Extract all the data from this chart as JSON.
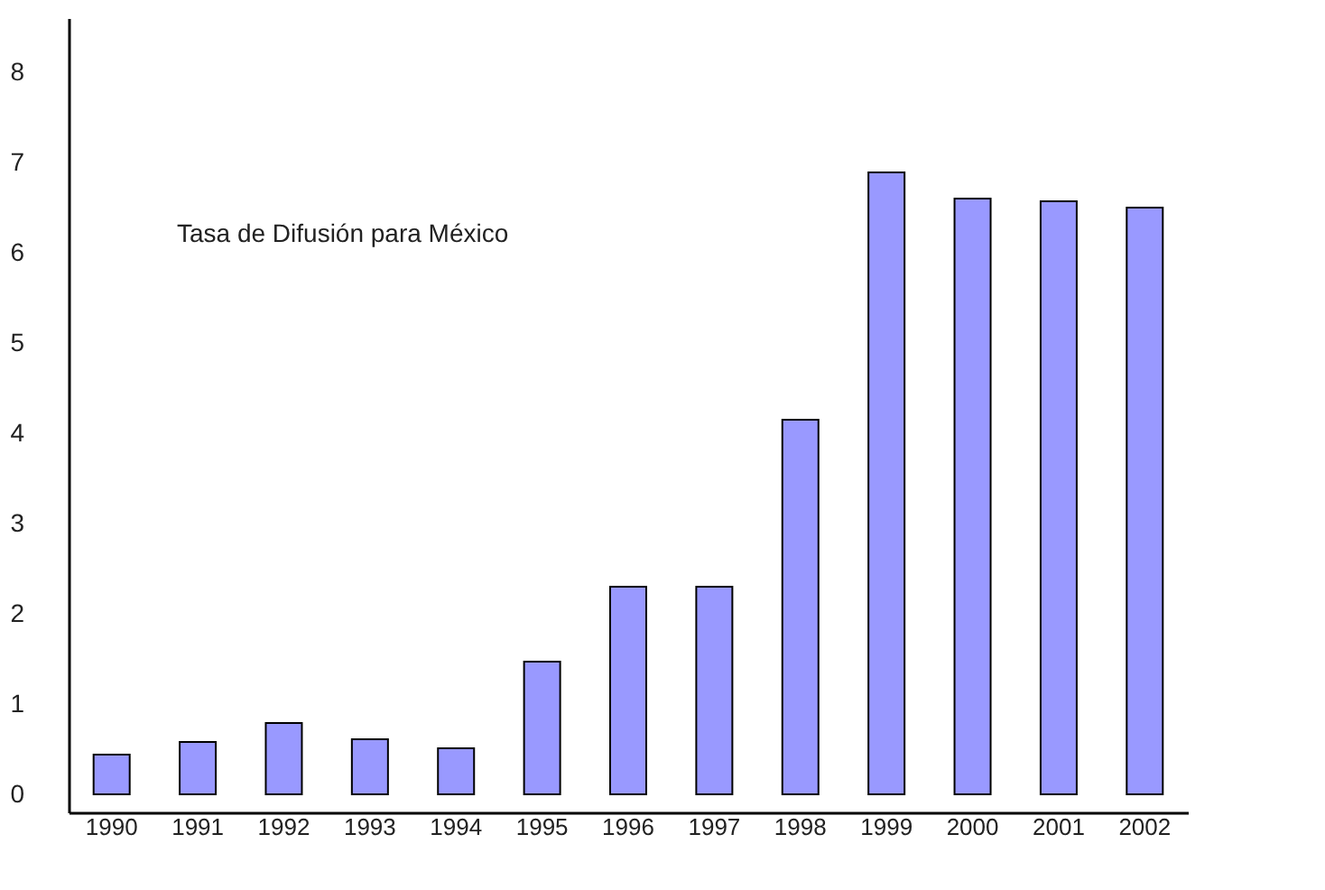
{
  "chart_data": {
    "type": "bar",
    "categories": [
      "1990",
      "1991",
      "1992",
      "1993",
      "1994",
      "1995",
      "1996",
      "1997",
      "1998",
      "1999",
      "2000",
      "2001",
      "2002"
    ],
    "values": [
      0.44,
      0.58,
      0.79,
      0.61,
      0.51,
      1.47,
      2.3,
      2.3,
      4.15,
      6.89,
      6.6,
      6.57,
      6.5
    ],
    "color": "#9999ff",
    "annotations": [
      "Tasa de Difusión para México"
    ],
    "ylim": [
      -0.2,
      8.6
    ],
    "yticks": [
      0,
      1,
      2,
      3,
      4,
      5,
      6,
      7,
      8
    ],
    "grid": false
  }
}
